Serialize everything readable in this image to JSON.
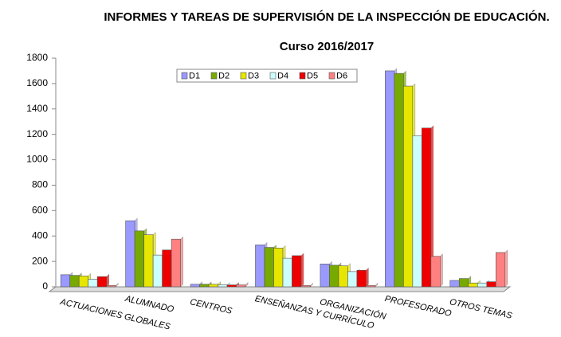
{
  "chart_data": {
    "type": "bar",
    "title": "INFORMES Y TAREAS DE SUPERVISIÓN DE LA INSPECCIÓN DE EDUCACIÓN.",
    "subtitle": "Curso 2016/2017",
    "categories": [
      "ACTUACIONES GLOBALES",
      "ALUMNADO",
      "CENTROS",
      "ENSEÑANZAS Y CURRÍCULO",
      "ORGANIZACIÓN",
      "PROFESORADO",
      "OTROS TEMAS"
    ],
    "series": [
      {
        "name": "D1",
        "color": "#9999ff",
        "values": [
          95,
          520,
          20,
          330,
          180,
          1700,
          50
        ]
      },
      {
        "name": "D2",
        "color": "#77aa00",
        "values": [
          90,
          440,
          20,
          310,
          170,
          1680,
          65
        ]
      },
      {
        "name": "D3",
        "color": "#e6e600",
        "values": [
          85,
          410,
          20,
          305,
          165,
          1580,
          30
        ]
      },
      {
        "name": "D4",
        "color": "#ccffff",
        "values": [
          60,
          250,
          15,
          225,
          120,
          1190,
          30
        ]
      },
      {
        "name": "D5",
        "color": "#ee0000",
        "values": [
          80,
          290,
          15,
          245,
          130,
          1250,
          40
        ]
      },
      {
        "name": "D6",
        "color": "#ff8080",
        "values": [
          10,
          375,
          15,
          10,
          10,
          240,
          270
        ]
      }
    ],
    "ylim": [
      0,
      1800
    ],
    "yticks": [
      0,
      200,
      400,
      600,
      800,
      1000,
      1200,
      1400,
      1600,
      1800
    ],
    "legend": "top"
  }
}
